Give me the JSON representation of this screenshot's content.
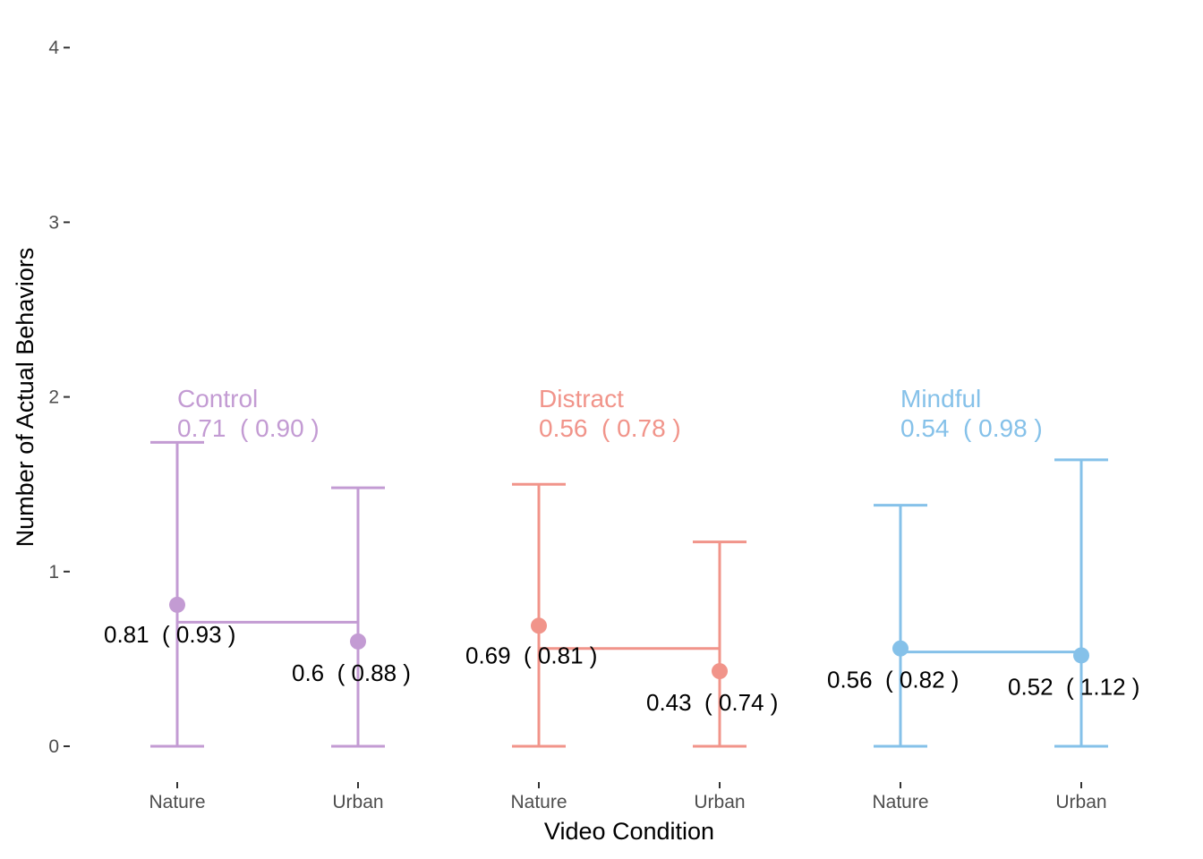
{
  "chart_data": {
    "type": "errorbar",
    "xlabel": "Video Condition",
    "ylabel": "Number of Actual Behaviors",
    "ylim": [
      -0.15,
      4.15
    ],
    "y_ticks": [
      "0",
      "1",
      "2",
      "3",
      "4"
    ],
    "grid": false,
    "groups": [
      {
        "name": "Control",
        "color": "#C39BD3",
        "summary_label": "0.71  ( 0.90 )",
        "mean": 0.71,
        "points": [
          {
            "category": "Nature",
            "mean": 0.81,
            "sd": 0.93,
            "lower": 0,
            "upper": 1.74,
            "label": "0.81  ( 0.93 )"
          },
          {
            "category": "Urban",
            "mean": 0.6,
            "sd": 0.88,
            "lower": 0,
            "upper": 1.48,
            "label": "0.6  ( 0.88 )"
          }
        ]
      },
      {
        "name": "Distract",
        "color": "#F1948A",
        "summary_label": "0.56  ( 0.78 )",
        "mean": 0.56,
        "points": [
          {
            "category": "Nature",
            "mean": 0.69,
            "sd": 0.81,
            "lower": 0,
            "upper": 1.5,
            "label": "0.69  ( 0.81 )"
          },
          {
            "category": "Urban",
            "mean": 0.43,
            "sd": 0.74,
            "lower": 0,
            "upper": 1.17,
            "label": "0.43  ( 0.74 )"
          }
        ]
      },
      {
        "name": "Mindful",
        "color": "#85C1E9",
        "summary_label": "0.54  ( 0.98 )",
        "mean": 0.54,
        "points": [
          {
            "category": "Nature",
            "mean": 0.56,
            "sd": 0.82,
            "lower": 0,
            "upper": 1.38,
            "label": "0.56  ( 0.82 )"
          },
          {
            "category": "Urban",
            "mean": 0.52,
            "sd": 1.12,
            "lower": 0,
            "upper": 1.64,
            "label": "0.52  ( 1.12 )"
          }
        ]
      }
    ]
  }
}
